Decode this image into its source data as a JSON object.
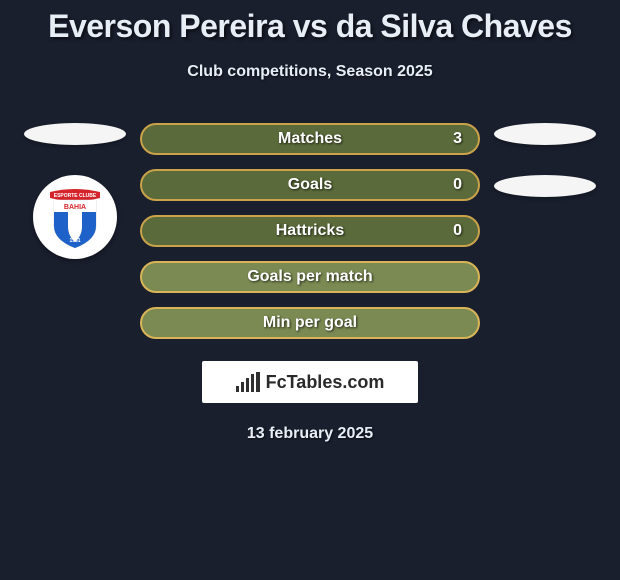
{
  "title": "Everson Pereira vs da Silva Chaves",
  "subtitle": "Club competitions, Season 2025",
  "date": "13 february 2025",
  "watermark_text": "FcTables.com",
  "stat_colors": {
    "border_dark": "#c9a24a",
    "fill_dark": "#5a6a3a",
    "border_light": "#d9b558",
    "fill_light": "#7a8a52"
  },
  "stats": [
    {
      "label": "Matches",
      "value": "3",
      "variant": "dark"
    },
    {
      "label": "Goals",
      "value": "0",
      "variant": "dark"
    },
    {
      "label": "Hattricks",
      "value": "0",
      "variant": "dark"
    },
    {
      "label": "Goals per match",
      "value": "",
      "variant": "light"
    },
    {
      "label": "Min per goal",
      "value": "",
      "variant": "light"
    }
  ],
  "left_side": {
    "show_ellipse": true,
    "show_badge": true
  },
  "right_side": {
    "ellipses": 2
  },
  "badge": {
    "outer_bg": "#ffffff",
    "ribbon_color": "#d4242a",
    "body_blue": "#1e62c9",
    "body_white": "#ffffff"
  }
}
